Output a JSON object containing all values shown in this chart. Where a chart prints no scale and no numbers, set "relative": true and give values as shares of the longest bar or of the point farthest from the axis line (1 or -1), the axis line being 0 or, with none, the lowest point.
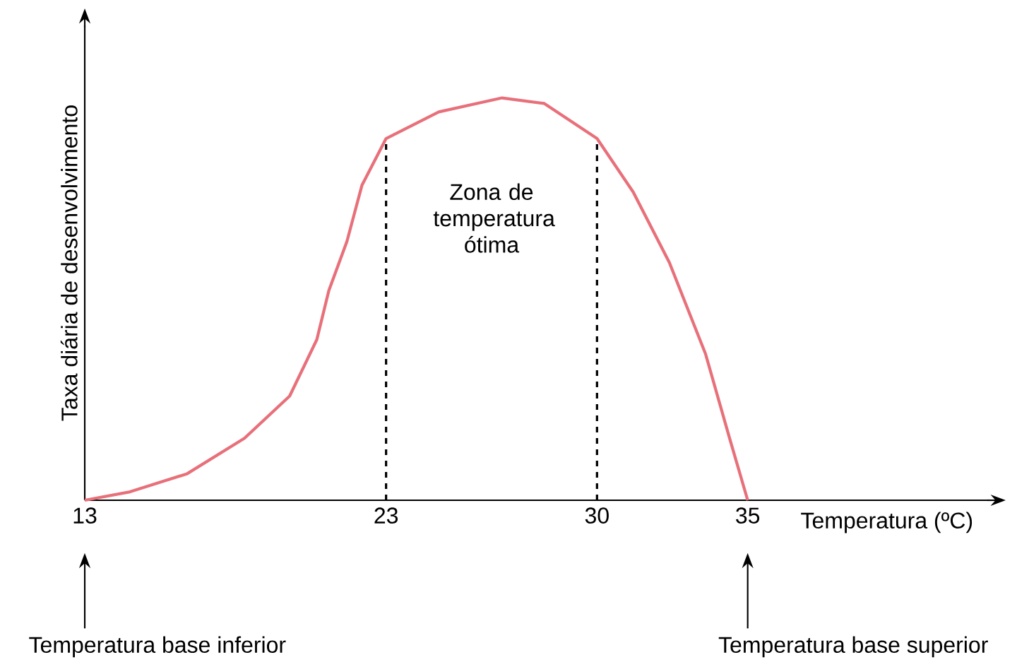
{
  "chart_data": {
    "type": "line",
    "relative": true,
    "x": [
      13,
      14.5,
      16.4,
      18.3,
      19.8,
      20.7,
      21.1,
      21.7,
      22.2,
      23,
      24.75,
      26.85,
      28.25,
      30,
      31.2,
      32.4,
      33.6,
      34.4,
      35
    ],
    "series": [
      {
        "color": "#e8707a",
        "values": [
          0,
          0.021,
          0.066,
          0.154,
          0.259,
          0.399,
          0.521,
          0.643,
          0.783,
          0.899,
          0.965,
          1,
          0.986,
          0.899,
          0.766,
          0.591,
          0.364,
          0.154,
          0
        ]
      }
    ],
    "xlim": [
      13,
      43
    ],
    "xticks": [
      13,
      23,
      30,
      35
    ],
    "xlabel": "Temperatura (ºC)",
    "ylabel": "Taxa diária de desenvolvimento",
    "ref_lines": [
      {
        "axis": "x",
        "value": 23,
        "line_style": "dashed",
        "color": "#000000"
      },
      {
        "axis": "x",
        "value": 30,
        "line_style": "dashed",
        "color": "#000000"
      }
    ],
    "annotations": [
      "Zona de temperatura ótima",
      "Temperatura base inferior",
      "Temperatura base superior"
    ],
    "marker": "none",
    "line_style": "solid",
    "grid": false
  }
}
